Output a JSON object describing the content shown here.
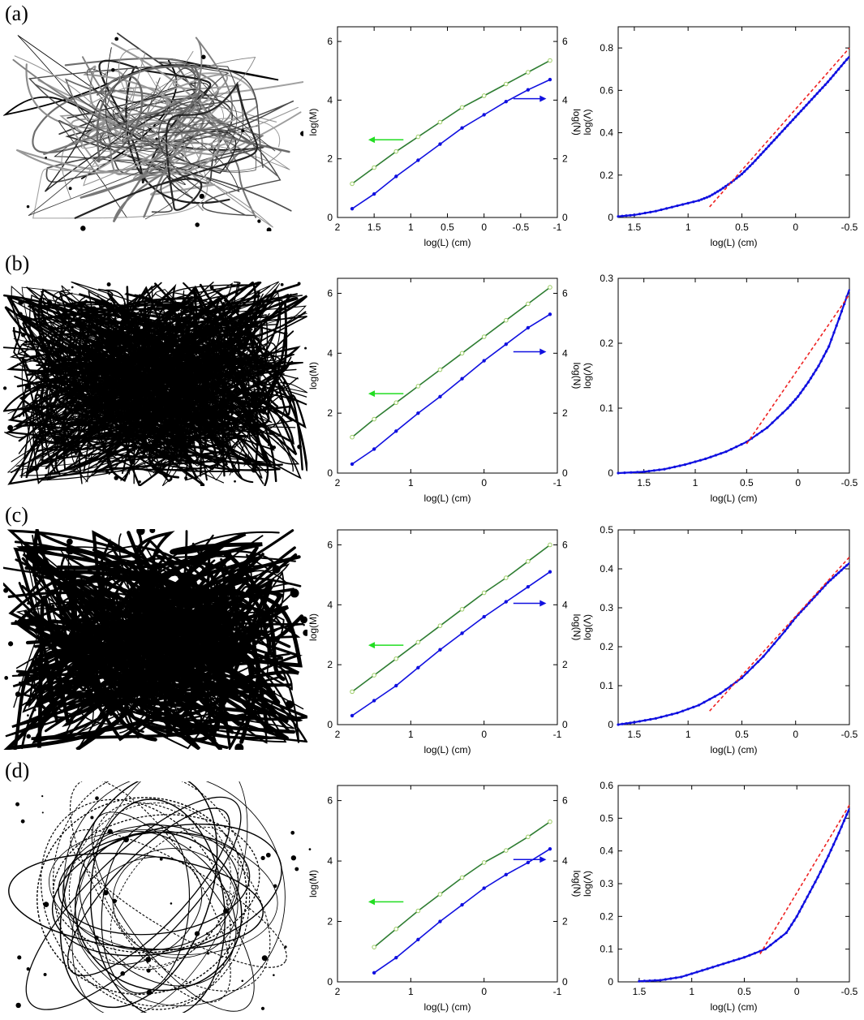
{
  "figure": {
    "panels": [
      {
        "label": "(a)"
      },
      {
        "label": "(b)"
      },
      {
        "label": "(c)"
      },
      {
        "label": "(d)"
      }
    ]
  },
  "colors": {
    "m_series": "#2e7d32",
    "m_marker": "#9ccc65",
    "n_series": "#1010e0",
    "green_arrow": "#22dd22",
    "blue_arrow": "#1010e0",
    "fit_line": "#ee2222",
    "axis": "#000000"
  },
  "chart_data": [
    {
      "panel": "(a)",
      "type": "line",
      "xlabel": "log(L) (cm)",
      "ylabel": "log(M)",
      "y2label": "log(N)",
      "xlim": [
        2,
        -1
      ],
      "xticks": [
        "2",
        "1.5",
        "1",
        "0.5",
        "0",
        "-0.5",
        "-1"
      ],
      "ylim": [
        0,
        6.5
      ],
      "yticks": [
        "0",
        "2",
        "4",
        "6"
      ],
      "y2ticks": [
        "0",
        "2",
        "4",
        "6"
      ],
      "series": [
        {
          "axis": "left",
          "x": [
            1.8,
            1.5,
            1.2,
            0.9,
            0.6,
            0.3,
            0,
            -0.3,
            -0.6,
            -0.9
          ],
          "y": [
            1.15,
            1.7,
            2.25,
            2.75,
            3.25,
            3.75,
            4.15,
            4.55,
            4.95,
            5.35
          ]
        },
        {
          "axis": "right",
          "x": [
            1.8,
            1.5,
            1.2,
            0.9,
            0.6,
            0.3,
            0,
            -0.3,
            -0.6,
            -0.9
          ],
          "y": [
            0.3,
            0.8,
            1.4,
            1.95,
            2.5,
            3.05,
            3.5,
            3.95,
            4.35,
            4.7
          ]
        }
      ]
    },
    {
      "panel": "(a)",
      "type": "line",
      "xlabel": "log(L) (cm)",
      "ylabel": "log(Λ)",
      "xlim": [
        1.65,
        -0.5
      ],
      "xticks": [
        "1.5",
        "1",
        "0.5",
        "0",
        "-0.5"
      ],
      "ylim": [
        0,
        0.9
      ],
      "yticks": [
        "0",
        "0.2",
        "0.4",
        "0.6",
        "0.8"
      ],
      "curve": {
        "x": [
          1.65,
          1.5,
          1.3,
          1.1,
          0.9,
          0.8,
          0.7,
          0.6,
          0.5,
          0.4,
          0.3,
          0.2,
          0.1,
          0,
          -0.1,
          -0.2,
          -0.3,
          -0.4,
          -0.5
        ],
        "y": [
          0.005,
          0.012,
          0.03,
          0.055,
          0.08,
          0.1,
          0.13,
          0.165,
          0.205,
          0.255,
          0.31,
          0.365,
          0.42,
          0.475,
          0.53,
          0.585,
          0.64,
          0.7,
          0.76
        ]
      },
      "fit": {
        "x": [
          0.8,
          -0.5
        ],
        "y": [
          0.05,
          0.8
        ]
      }
    },
    {
      "panel": "(b)",
      "type": "line",
      "xlabel": "log(L) (cm)",
      "ylabel": "log(M)",
      "y2label": "log(N)",
      "xlim": [
        2,
        -1
      ],
      "xticks": [
        "2",
        "1",
        "0",
        "-1"
      ],
      "ylim": [
        0,
        6.5
      ],
      "yticks": [
        "0",
        "2",
        "4",
        "6"
      ],
      "y2ticks": [
        "0",
        "2",
        "4",
        "6"
      ],
      "series": [
        {
          "axis": "left",
          "x": [
            1.8,
            1.5,
            1.2,
            0.9,
            0.6,
            0.3,
            0,
            -0.3,
            -0.6,
            -0.9
          ],
          "y": [
            1.2,
            1.8,
            2.35,
            2.9,
            3.45,
            4.0,
            4.55,
            5.1,
            5.65,
            6.2
          ]
        },
        {
          "axis": "right",
          "x": [
            1.8,
            1.5,
            1.2,
            0.9,
            0.6,
            0.3,
            0,
            -0.3,
            -0.6,
            -0.9
          ],
          "y": [
            0.3,
            0.8,
            1.4,
            2.0,
            2.55,
            3.15,
            3.75,
            4.3,
            4.85,
            5.3
          ]
        }
      ]
    },
    {
      "panel": "(b)",
      "type": "line",
      "xlabel": "log(L) (cm)",
      "ylabel": "log(Λ)",
      "xlim": [
        1.75,
        -0.5
      ],
      "xticks": [
        "1.5",
        "1",
        "0.5",
        "0",
        "-0.5"
      ],
      "ylim": [
        0,
        0.3
      ],
      "yticks": [
        "0",
        "0.1",
        "0.2",
        "0.3"
      ],
      "curve": {
        "x": [
          1.75,
          1.5,
          1.3,
          1.1,
          0.9,
          0.7,
          0.5,
          0.3,
          0.1,
          0,
          -0.1,
          -0.2,
          -0.3,
          -0.4,
          -0.5
        ],
        "y": [
          0,
          0.002,
          0.006,
          0.013,
          0.022,
          0.033,
          0.048,
          0.07,
          0.1,
          0.118,
          0.14,
          0.165,
          0.195,
          0.238,
          0.283
        ]
      },
      "fit": {
        "x": [
          0.5,
          -0.5
        ],
        "y": [
          0.045,
          0.275
        ]
      }
    },
    {
      "panel": "(c)",
      "type": "line",
      "xlabel": "log(L) (cm)",
      "ylabel": "log(M)",
      "y2label": "log(N)",
      "xlim": [
        2,
        -1
      ],
      "xticks": [
        "2",
        "1",
        "0",
        "-1"
      ],
      "ylim": [
        0,
        6.5
      ],
      "yticks": [
        "0",
        "2",
        "4",
        "6"
      ],
      "y2ticks": [
        "0",
        "2",
        "4",
        "6"
      ],
      "series": [
        {
          "axis": "left",
          "x": [
            1.8,
            1.5,
            1.2,
            0.9,
            0.6,
            0.3,
            0,
            -0.3,
            -0.6,
            -0.9
          ],
          "y": [
            1.1,
            1.65,
            2.2,
            2.75,
            3.3,
            3.85,
            4.4,
            4.9,
            5.45,
            6.0
          ]
        },
        {
          "axis": "right",
          "x": [
            1.8,
            1.5,
            1.2,
            0.9,
            0.6,
            0.3,
            0,
            -0.3,
            -0.6,
            -0.9
          ],
          "y": [
            0.3,
            0.8,
            1.3,
            1.9,
            2.5,
            3.05,
            3.6,
            4.1,
            4.6,
            5.1
          ]
        }
      ]
    },
    {
      "panel": "(c)",
      "type": "line",
      "xlabel": "log(L) (cm)",
      "ylabel": "log(Λ)",
      "xlim": [
        1.65,
        -0.5
      ],
      "xticks": [
        "1.5",
        "1",
        "0.5",
        "0",
        "-0.5"
      ],
      "ylim": [
        0,
        0.5
      ],
      "yticks": [
        "0",
        "0.1",
        "0.2",
        "0.3",
        "0.4",
        "0.5"
      ],
      "curve": {
        "x": [
          1.65,
          1.5,
          1.3,
          1.1,
          0.9,
          0.7,
          0.5,
          0.3,
          0.1,
          0,
          -0.1,
          -0.2,
          -0.3,
          -0.4,
          -0.5
        ],
        "y": [
          0,
          0.006,
          0.016,
          0.03,
          0.05,
          0.08,
          0.12,
          0.175,
          0.24,
          0.275,
          0.305,
          0.335,
          0.365,
          0.39,
          0.415
        ]
      },
      "fit": {
        "x": [
          0.8,
          -0.5
        ],
        "y": [
          0.035,
          0.43
        ]
      }
    },
    {
      "panel": "(d)",
      "type": "line",
      "xlabel": "log(L) (cm)",
      "ylabel": "log(M)",
      "y2label": "log(N)",
      "xlim": [
        2,
        -1
      ],
      "xticks": [
        "2",
        "1",
        "0",
        "-1"
      ],
      "ylim": [
        0,
        6.5
      ],
      "yticks": [
        "0",
        "2",
        "4",
        "6"
      ],
      "y2ticks": [
        "0",
        "2",
        "4",
        "6"
      ],
      "series": [
        {
          "axis": "left",
          "x": [
            1.5,
            1.2,
            0.9,
            0.6,
            0.3,
            0,
            -0.3,
            -0.6,
            -0.9
          ],
          "y": [
            1.15,
            1.75,
            2.35,
            2.9,
            3.45,
            3.95,
            4.35,
            4.8,
            5.3
          ]
        },
        {
          "axis": "right",
          "x": [
            1.5,
            1.2,
            0.9,
            0.6,
            0.3,
            0,
            -0.3,
            -0.6,
            -0.9
          ],
          "y": [
            0.3,
            0.8,
            1.4,
            2.0,
            2.55,
            3.1,
            3.55,
            3.95,
            4.4
          ]
        }
      ]
    },
    {
      "panel": "(d)",
      "type": "line",
      "xlabel": "log(L) (cm)",
      "ylabel": "log(Λ)",
      "xlim": [
        1.7,
        -0.5
      ],
      "xticks": [
        "1.5",
        "1",
        "0.5",
        "0",
        "-0.5"
      ],
      "ylim": [
        0,
        0.6
      ],
      "yticks": [
        "0",
        "0.1",
        "0.2",
        "0.3",
        "0.4",
        "0.5",
        "0.6"
      ],
      "curve": {
        "x": [
          1.5,
          1.3,
          1.1,
          0.9,
          0.7,
          0.5,
          0.3,
          0.1,
          0,
          -0.1,
          -0.2,
          -0.3,
          -0.4,
          -0.5
        ],
        "y": [
          0.002,
          0.005,
          0.015,
          0.035,
          0.055,
          0.075,
          0.1,
          0.15,
          0.2,
          0.26,
          0.32,
          0.385,
          0.455,
          0.53
        ]
      },
      "fit": {
        "x": [
          0.35,
          -0.5
        ],
        "y": [
          0.085,
          0.54
        ]
      }
    }
  ]
}
